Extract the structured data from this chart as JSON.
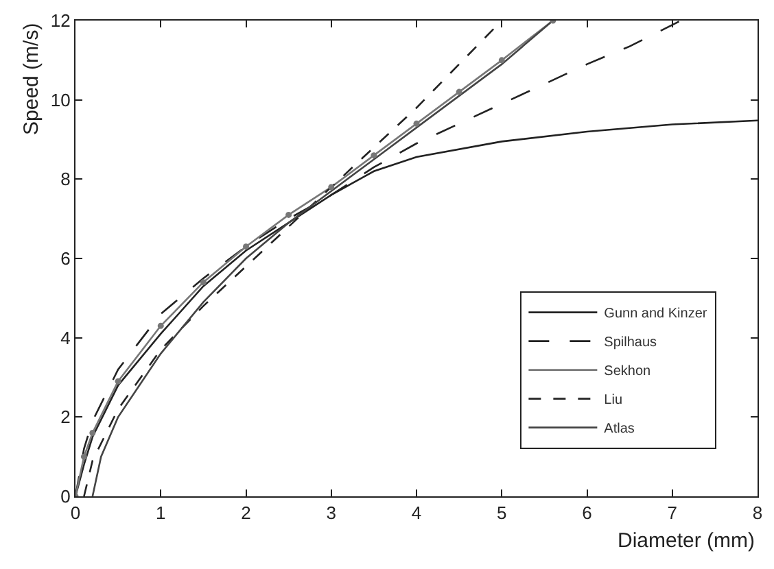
{
  "chart_data": {
    "type": "line",
    "xlabel": "Diameter (mm)",
    "ylabel": "Speed (m/s)",
    "xlim": [
      0,
      8
    ],
    "ylim": [
      0,
      12
    ],
    "xticks": [
      0,
      1,
      2,
      3,
      4,
      5,
      6,
      7,
      8
    ],
    "yticks": [
      0,
      2,
      4,
      6,
      8,
      10,
      12
    ],
    "grid": false,
    "legend": "bottom right",
    "series": [
      {
        "name": "Gunn and Kinzer",
        "color": "#222222",
        "line_style": "solid",
        "marker": "none",
        "x": [
          0,
          0.1,
          0.2,
          0.5,
          1,
          1.5,
          2,
          2.5,
          3,
          3.5,
          4,
          5,
          6,
          7,
          8
        ],
        "values": [
          0,
          0.8,
          1.5,
          2.8,
          4.1,
          5.3,
          6.2,
          6.9,
          7.6,
          8.2,
          8.56,
          8.95,
          9.2,
          9.38,
          9.48
        ]
      },
      {
        "name": "Spilhaus",
        "color": "#222222",
        "line_style": "dashed",
        "marker": "none",
        "x": [
          0,
          0.1,
          0.2,
          0.5,
          1,
          1.5,
          2,
          2.5,
          3,
          3.5,
          4,
          4.5,
          5,
          5.5,
          6,
          6.5,
          7.1
        ],
        "values": [
          0,
          1.2,
          1.9,
          3.2,
          4.6,
          5.5,
          6.3,
          7.0,
          7.6,
          8.3,
          8.9,
          9.4,
          9.9,
          10.4,
          10.9,
          11.35,
          12
        ]
      },
      {
        "name": "Sekhon",
        "color": "#777777",
        "line_style": "solid",
        "marker": "circle",
        "x": [
          0,
          0.1,
          0.2,
          0.5,
          1,
          1.5,
          2,
          2.5,
          3,
          3.5,
          4,
          4.5,
          5,
          5.6
        ],
        "values": [
          0,
          1.0,
          1.6,
          2.9,
          4.3,
          5.4,
          6.3,
          7.1,
          7.8,
          8.6,
          9.4,
          10.2,
          11.0,
          12
        ]
      },
      {
        "name": "Liu",
        "color": "#222222",
        "line_style": "dotted",
        "marker": "none",
        "x": [
          0.1,
          0.2,
          0.5,
          1,
          1.5,
          2,
          2.5,
          3,
          3.5,
          4,
          4.5,
          5
        ],
        "values": [
          0,
          0.9,
          2.2,
          3.7,
          4.8,
          5.8,
          6.8,
          7.8,
          8.8,
          9.8,
          10.9,
          12
        ]
      },
      {
        "name": "Atlas",
        "color": "#444444",
        "line_style": "solid",
        "marker": "none",
        "x": [
          0.2,
          0.3,
          0.5,
          1,
          1.5,
          2,
          2.5,
          3,
          3.5,
          4,
          4.5,
          5,
          5.6
        ],
        "values": [
          0,
          1.0,
          2.0,
          3.6,
          4.9,
          6.0,
          6.9,
          7.7,
          8.5,
          9.3,
          10.1,
          10.9,
          12
        ]
      }
    ]
  }
}
